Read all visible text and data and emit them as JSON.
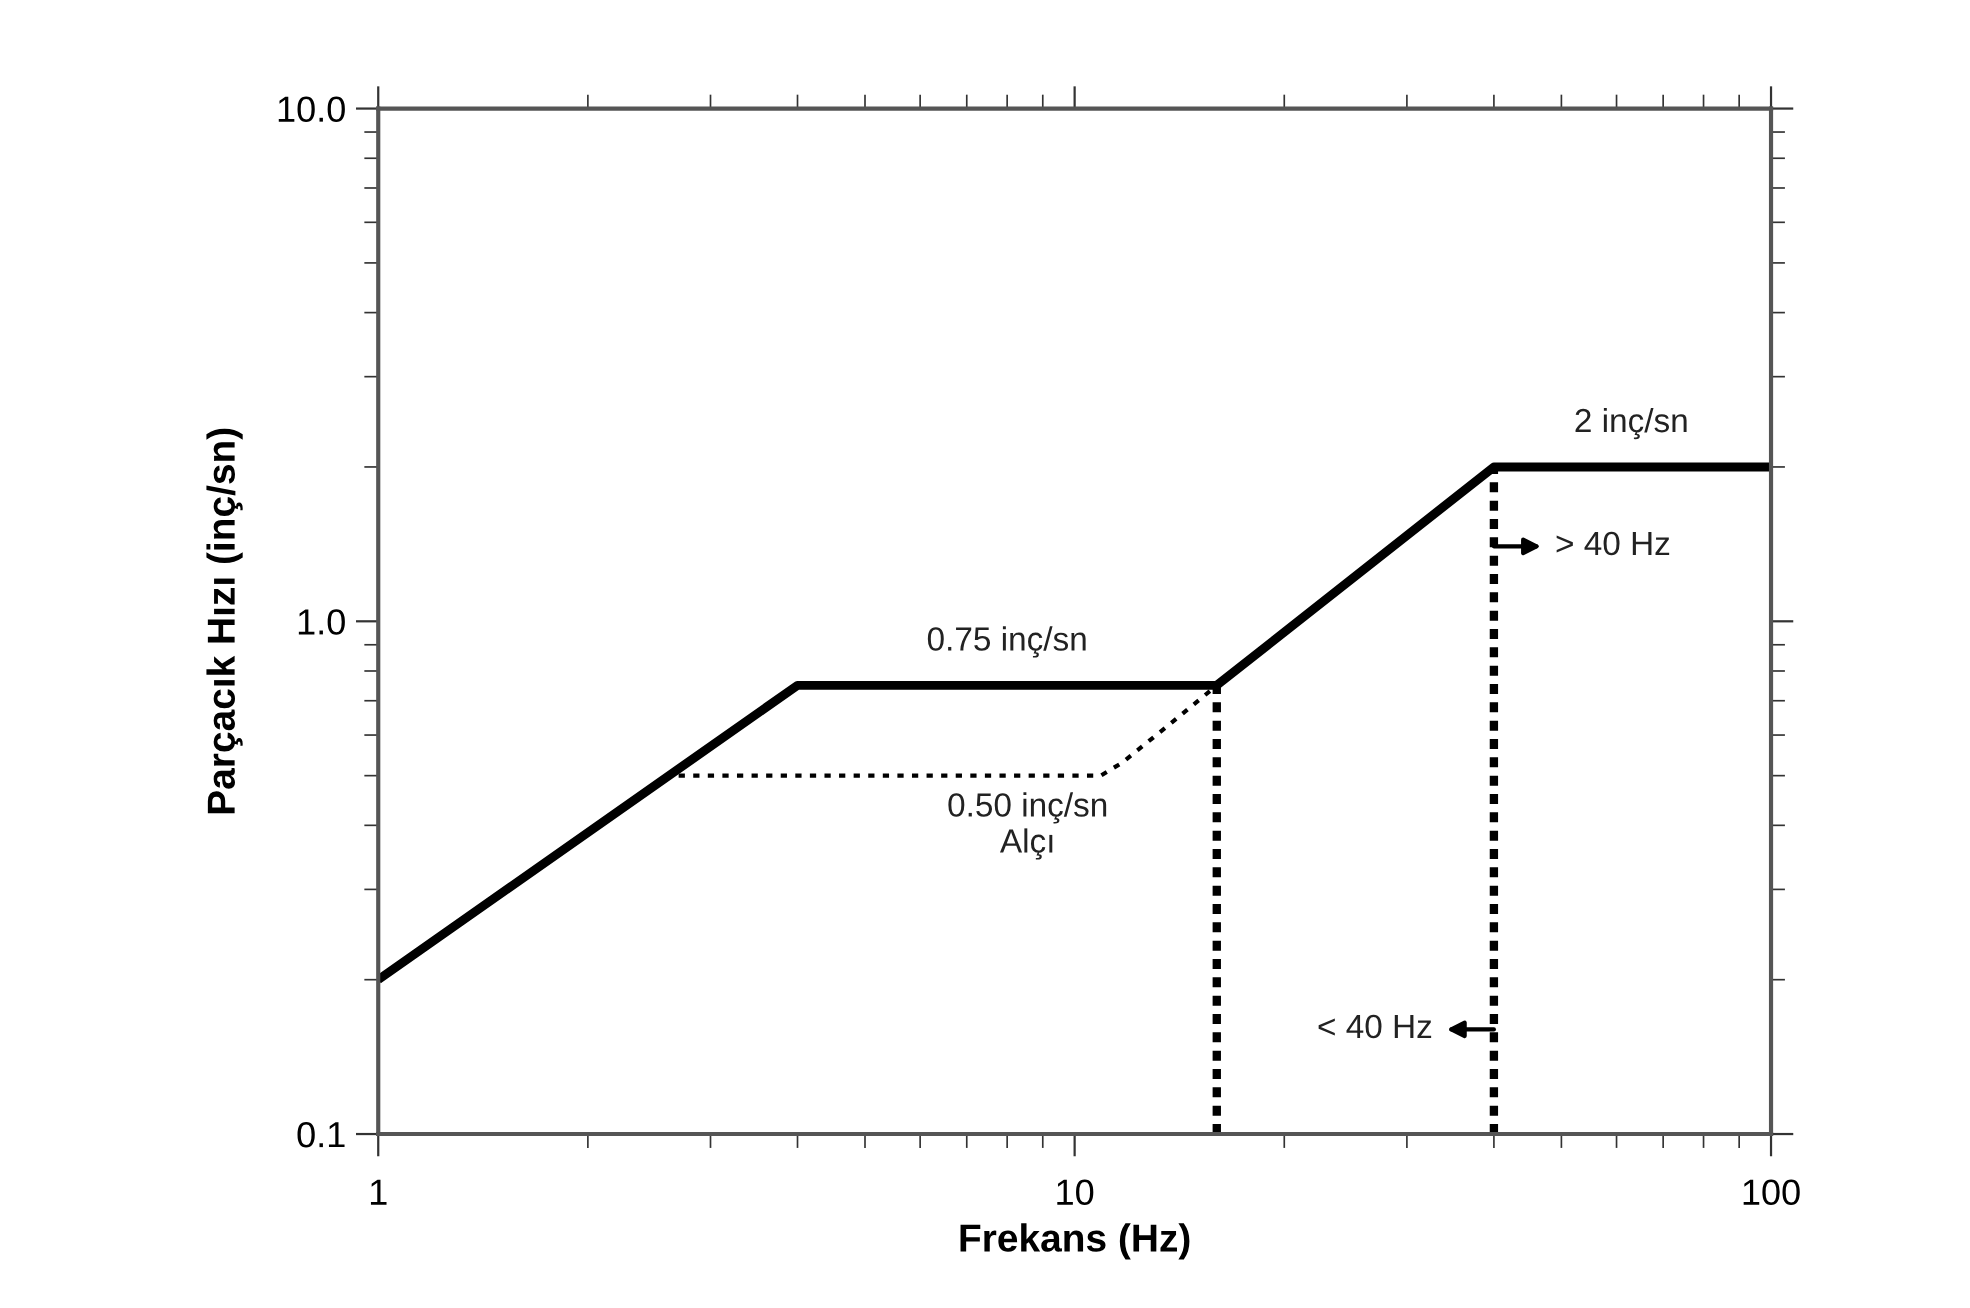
{
  "chart_data": {
    "type": "line",
    "xlabel": "Frekans (Hz)",
    "ylabel": "Parçacık Hızı (inç/sn)",
    "log": "xy",
    "grid": false,
    "xlim": [
      1,
      100
    ],
    "ylim": [
      0.1,
      10
    ],
    "xticks": [
      1,
      10,
      100
    ],
    "yticks": [
      0.1,
      {
        "value": 1,
        "label": "1.0"
      },
      {
        "value": 10,
        "label": "10.0"
      }
    ],
    "series": [
      {
        "color": "#000000",
        "line_style": "solid",
        "x": [
          1,
          4,
          16,
          40,
          100
        ],
        "values": [
          0.2,
          0.75,
          0.75,
          2.0,
          2.0
        ]
      },
      {
        "color": "#000000",
        "line_style": "dotted",
        "x": [
          2.7,
          10.9,
          11.7,
          13.5,
          16
        ],
        "values": [
          0.5,
          0.5,
          0.53,
          0.62,
          0.75
        ]
      },
      {
        "color": "#000000",
        "line_style": "dashed",
        "x": [
          16,
          16
        ],
        "values": [
          0.1,
          0.75
        ]
      },
      {
        "color": "#000000",
        "line_style": "dashed",
        "x": [
          40,
          40
        ],
        "values": [
          0.1,
          2.0
        ]
      }
    ],
    "annotations": [
      {
        "text": "0.75 inç/sn",
        "x": 8,
        "y": 0.75
      },
      {
        "text": "0.50 inç/sn\nAlçı",
        "x": 6.5,
        "y": 0.5
      },
      {
        "text": "2 inç/sn",
        "x": 63,
        "y": 2.0
      },
      {
        "text": "> 40 Hz",
        "x": 40,
        "y": 1.4
      },
      {
        "text": "< 40 Hz",
        "x": 40,
        "y": 0.16
      }
    ]
  }
}
